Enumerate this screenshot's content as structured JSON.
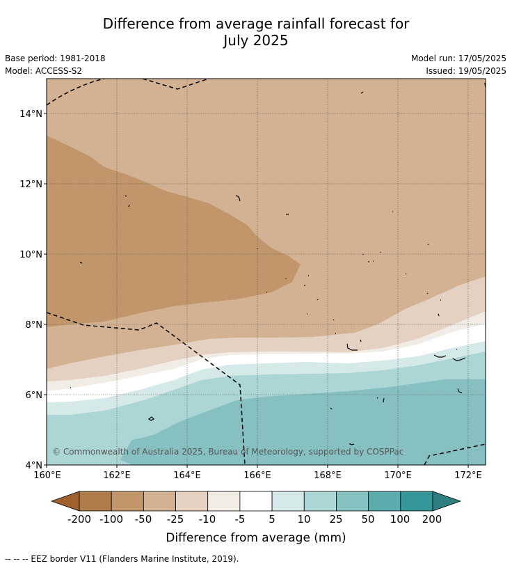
{
  "title_line1": "Difference from average rainfall forecast for",
  "title_line2": "July 2025",
  "base_period": "Base period: 1981-2018",
  "model": "Model: ACCESS-S2",
  "model_run": "Model run: 17/05/2025",
  "issued": "Issued: 19/05/2025",
  "copyright": "© Commonwealth of Australia 2025, Bureau of Meteorology, supported by COSPPac",
  "lat_labels": [
    "14°N",
    "12°N",
    "10°N",
    "8°N",
    "6°N",
    "4°N"
  ],
  "lon_labels": [
    "160°E",
    "162°E",
    "164°E",
    "166°E",
    "168°E",
    "170°E",
    "172°E"
  ],
  "colorbar": {
    "title": "Difference from average (mm)",
    "tick_labels": [
      "-200",
      "-100",
      "-50",
      "-25",
      "-10",
      "-5",
      "5",
      "10",
      "25",
      "50",
      "100",
      "200"
    ],
    "colors": [
      "#a0612f",
      "#b07c49",
      "#c1966b",
      "#d3b293",
      "#e4d1c1",
      "#f2ece6",
      "#ffffff",
      "#d5e9e8",
      "#acd5d5",
      "#86c0c0",
      "#5aabab",
      "#359797",
      "#2e7f80"
    ]
  },
  "footnote": "--  --  -- EEZ border V11 (Flanders Marine Institute, 2019)."
}
